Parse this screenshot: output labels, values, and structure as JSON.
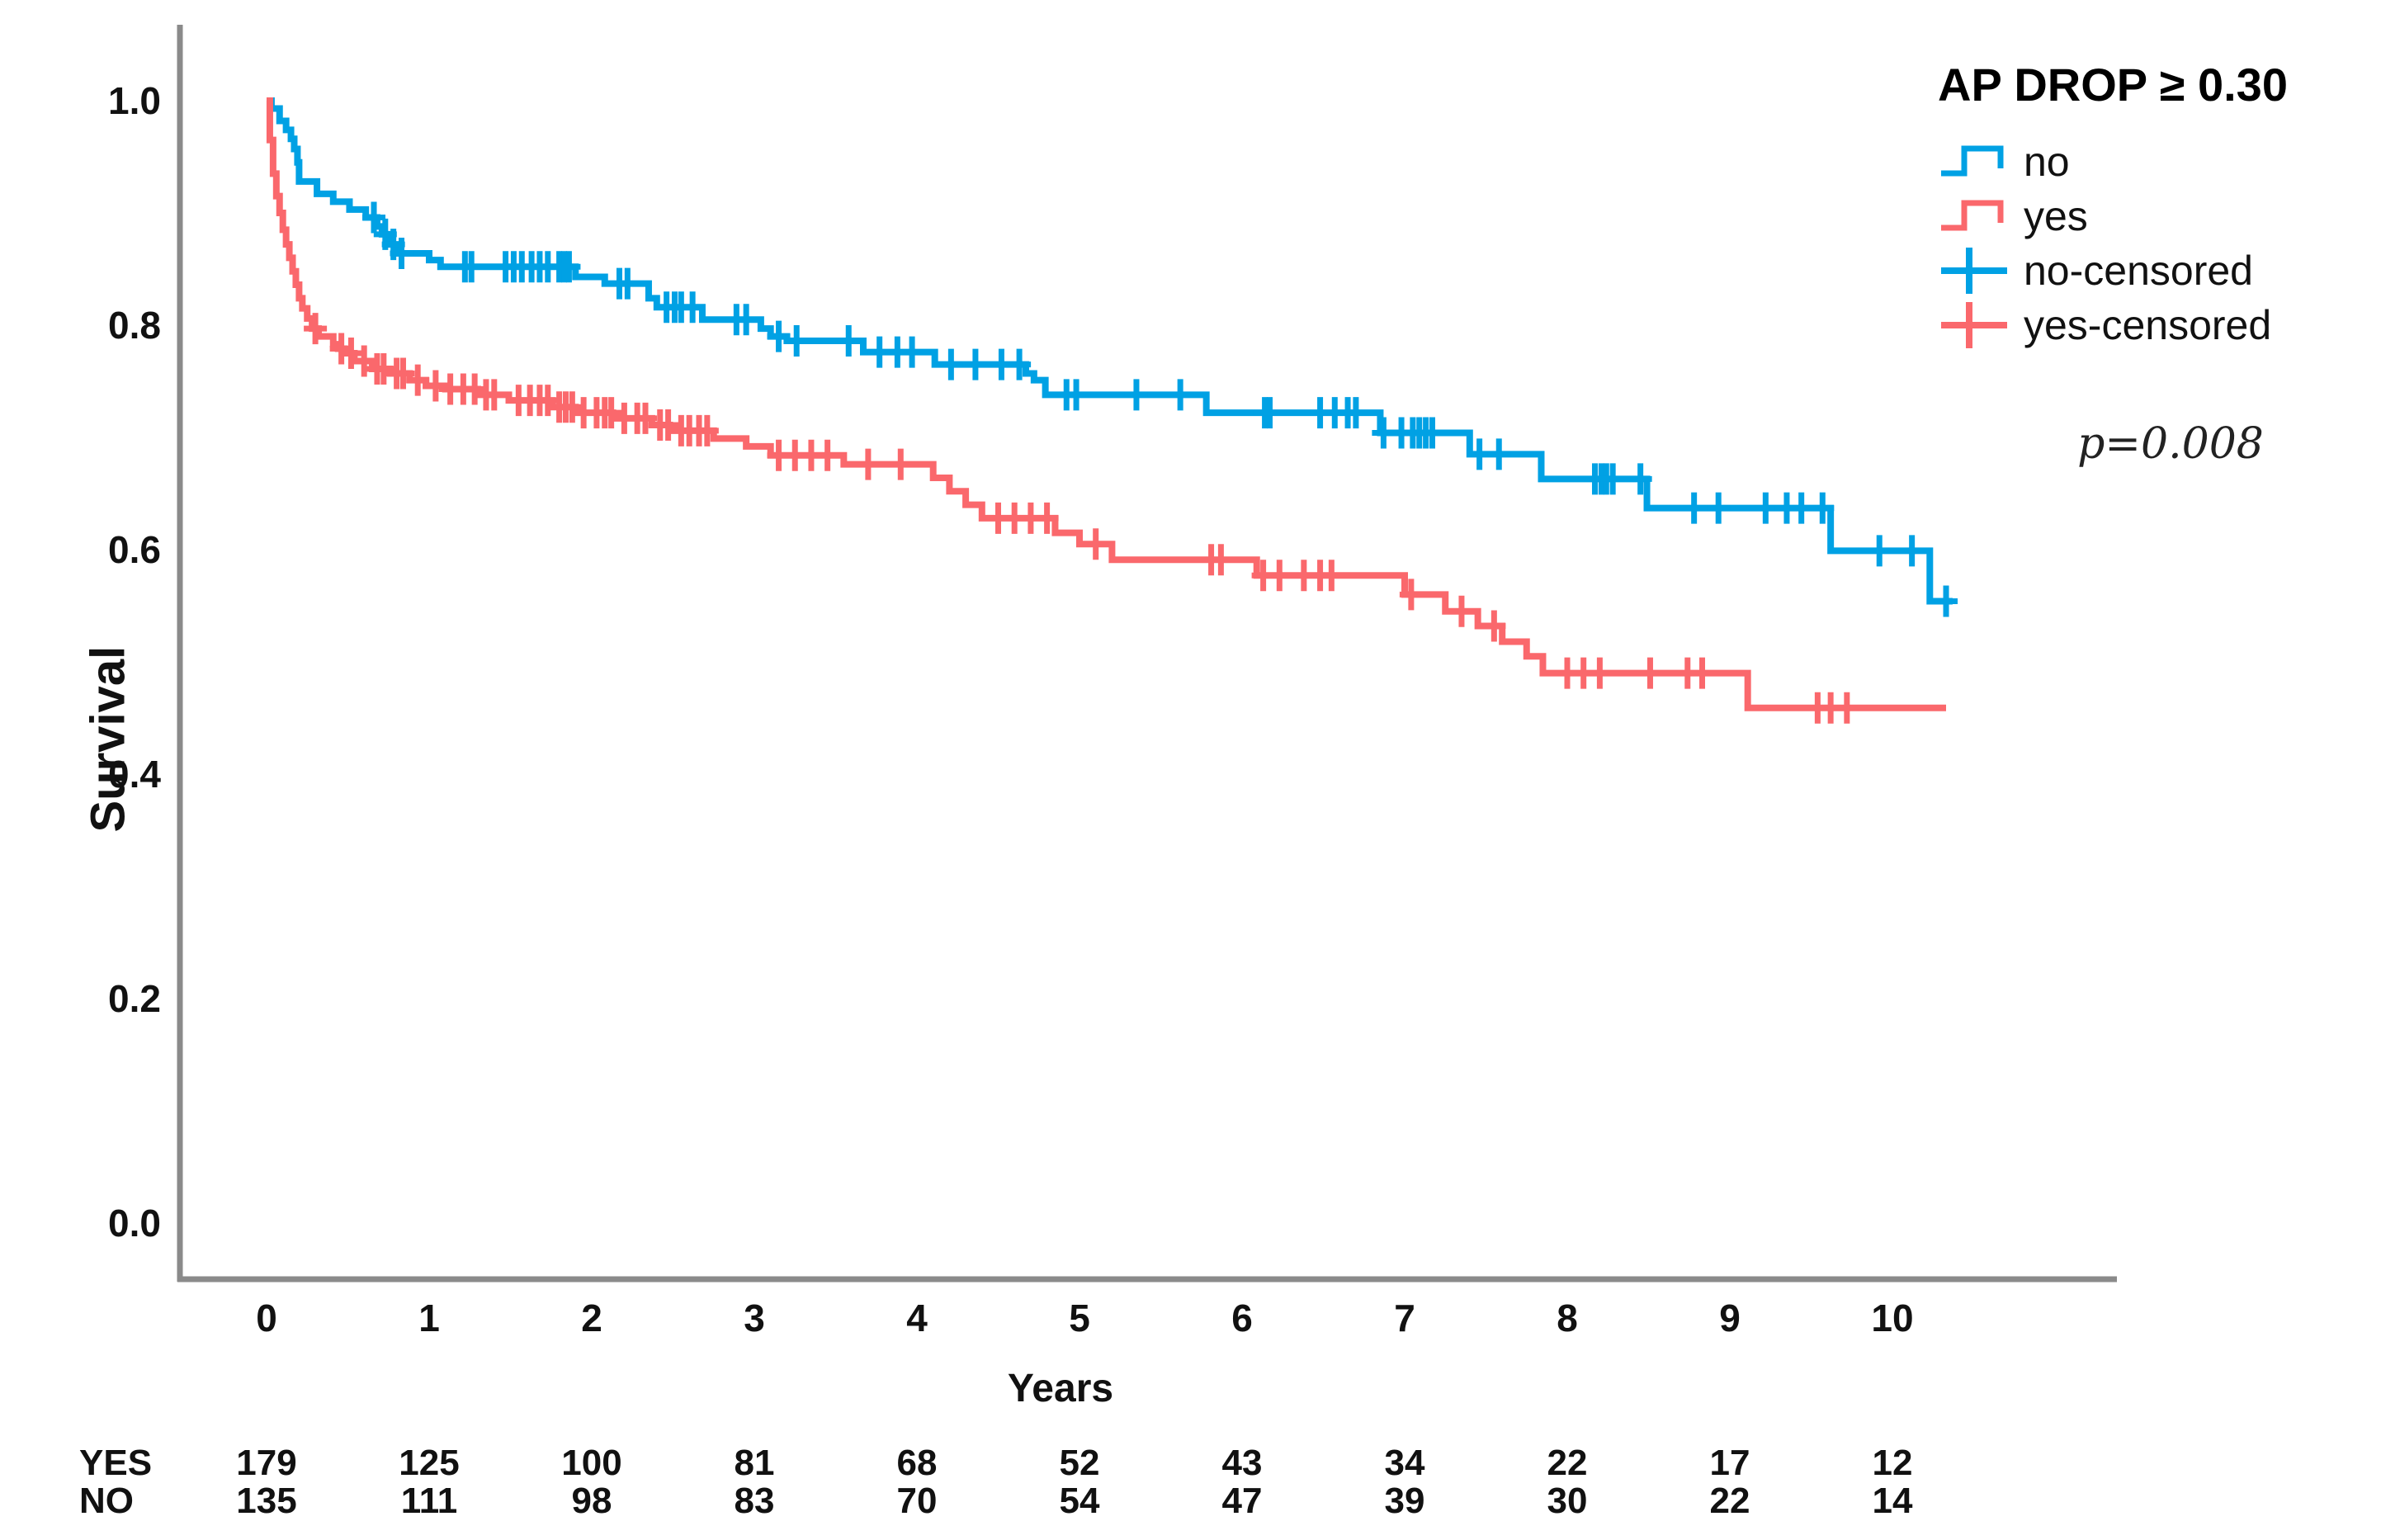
{
  "chart_data": {
    "type": "line",
    "variant": "kaplan-meier-step",
    "title": "",
    "xlabel": "Years",
    "ylabel": "Survival",
    "x_ticks": [
      "0",
      "1",
      "2",
      "3",
      "4",
      "5",
      "6",
      "7",
      "8",
      "9",
      "10"
    ],
    "y_ticks": [
      "0.0",
      "0.2",
      "0.4",
      "0.6",
      "0.8",
      "1.0"
    ],
    "xlim": [
      -0.55,
      11.35
    ],
    "ylim": [
      -0.05,
      1.07
    ],
    "grid": false,
    "legend_position": "top-right",
    "series": [
      {
        "name": "no",
        "color": "#00A1E4",
        "end_t": 10.37,
        "steps": [
          [
            0,
            1.0
          ],
          [
            0.03,
            0.993
          ],
          [
            0.08,
            0.982
          ],
          [
            0.12,
            0.974
          ],
          [
            0.15,
            0.966
          ],
          [
            0.17,
            0.957
          ],
          [
            0.19,
            0.945
          ],
          [
            0.2,
            0.928
          ],
          [
            0.31,
            0.917
          ],
          [
            0.41,
            0.91
          ],
          [
            0.51,
            0.903
          ],
          [
            0.61,
            0.896
          ],
          [
            0.68,
            0.888
          ],
          [
            0.71,
            0.881
          ],
          [
            0.76,
            0.872
          ],
          [
            0.8,
            0.864
          ],
          [
            1.0,
            0.858
          ],
          [
            1.07,
            0.852
          ],
          [
            1.9,
            0.843
          ],
          [
            2.08,
            0.837
          ],
          [
            2.35,
            0.824
          ],
          [
            2.4,
            0.816
          ],
          [
            2.68,
            0.805
          ],
          [
            3.04,
            0.797
          ],
          [
            3.1,
            0.79
          ],
          [
            3.2,
            0.786
          ],
          [
            3.67,
            0.776
          ],
          [
            4.11,
            0.765
          ],
          [
            4.67,
            0.757
          ],
          [
            4.72,
            0.751
          ],
          [
            4.79,
            0.738
          ],
          [
            5.78,
            0.722
          ],
          [
            6.85,
            0.704
          ],
          [
            7.4,
            0.685
          ],
          [
            7.84,
            0.663
          ],
          [
            8.49,
            0.637
          ],
          [
            9.62,
            0.599
          ],
          [
            10.23,
            0.554
          ]
        ],
        "censor_t": [
          0.66,
          0.73,
          0.78,
          0.83,
          1.22,
          1.26,
          1.47,
          1.52,
          1.57,
          1.63,
          1.68,
          1.73,
          1.8,
          1.83,
          1.86,
          2.17,
          2.22,
          2.46,
          2.51,
          2.55,
          2.62,
          2.89,
          2.95,
          3.15,
          3.26,
          3.58,
          3.77,
          3.88,
          3.97,
          4.21,
          4.36,
          4.52,
          4.63,
          4.92,
          4.98,
          5.35,
          5.62,
          6.14,
          6.17,
          6.48,
          6.57,
          6.65,
          6.7,
          6.87,
          6.98,
          7.05,
          7.09,
          7.13,
          7.17,
          7.46,
          7.58,
          8.17,
          8.21,
          8.24,
          8.28,
          8.45,
          8.78,
          8.93,
          9.22,
          9.35,
          9.44,
          9.57,
          9.92,
          10.12,
          10.33
        ]
      },
      {
        "name": "yes",
        "color": "#FA686C",
        "end_t": 10.33,
        "steps": [
          [
            0,
            1.0
          ],
          [
            0.02,
            0.965
          ],
          [
            0.04,
            0.935
          ],
          [
            0.06,
            0.915
          ],
          [
            0.08,
            0.9
          ],
          [
            0.1,
            0.885
          ],
          [
            0.12,
            0.872
          ],
          [
            0.14,
            0.86
          ],
          [
            0.16,
            0.848
          ],
          [
            0.18,
            0.836
          ],
          [
            0.2,
            0.824
          ],
          [
            0.22,
            0.815
          ],
          [
            0.25,
            0.806
          ],
          [
            0.28,
            0.797
          ],
          [
            0.32,
            0.79
          ],
          [
            0.41,
            0.783
          ],
          [
            0.44,
            0.779
          ],
          [
            0.48,
            0.775
          ],
          [
            0.54,
            0.768
          ],
          [
            0.65,
            0.761
          ],
          [
            0.76,
            0.757
          ],
          [
            0.88,
            0.751
          ],
          [
            0.98,
            0.746
          ],
          [
            1.1,
            0.743
          ],
          [
            1.3,
            0.738
          ],
          [
            1.49,
            0.733
          ],
          [
            1.76,
            0.727
          ],
          [
            1.9,
            0.722
          ],
          [
            2.13,
            0.717
          ],
          [
            2.37,
            0.711
          ],
          [
            2.48,
            0.706
          ],
          [
            2.75,
            0.699
          ],
          [
            2.95,
            0.692
          ],
          [
            3.1,
            0.684
          ],
          [
            3.55,
            0.676
          ],
          [
            4.1,
            0.664
          ],
          [
            4.2,
            0.652
          ],
          [
            4.3,
            0.64
          ],
          [
            4.4,
            0.628
          ],
          [
            4.85,
            0.615
          ],
          [
            5.0,
            0.605
          ],
          [
            5.2,
            0.591
          ],
          [
            6.09,
            0.577
          ],
          [
            7.0,
            0.56
          ],
          [
            7.25,
            0.545
          ],
          [
            7.45,
            0.532
          ],
          [
            7.6,
            0.518
          ],
          [
            7.75,
            0.505
          ],
          [
            7.85,
            0.49
          ],
          [
            9.11,
            0.459
          ]
        ],
        "censor_t": [
          0.3,
          0.46,
          0.52,
          0.6,
          0.68,
          0.72,
          0.8,
          0.84,
          0.93,
          1.04,
          1.13,
          1.21,
          1.28,
          1.35,
          1.4,
          1.55,
          1.62,
          1.68,
          1.73,
          1.8,
          1.84,
          1.88,
          1.95,
          2.03,
          2.08,
          2.12,
          2.2,
          2.28,
          2.33,
          2.42,
          2.47,
          2.55,
          2.6,
          2.66,
          2.71,
          3.15,
          3.25,
          3.35,
          3.45,
          3.7,
          3.9,
          4.5,
          4.6,
          4.7,
          4.8,
          5.1,
          5.81,
          5.87,
          6.13,
          6.23,
          6.38,
          6.48,
          6.55,
          7.04,
          7.35,
          7.55,
          8.0,
          8.1,
          8.2,
          8.51,
          8.74,
          8.83,
          9.54,
          9.62,
          9.72
        ]
      }
    ]
  },
  "legend": {
    "title": "AP DROP ≥ 0.30",
    "entries": [
      {
        "label": "no",
        "symbol": "step-line",
        "color": "#00A1E4"
      },
      {
        "label": "yes",
        "symbol": "step-line",
        "color": "#FA686C"
      },
      {
        "label": "no-censored",
        "symbol": "censor-plus",
        "color": "#00A1E4"
      },
      {
        "label": "yes-censored",
        "symbol": "censor-plus",
        "color": "#FA686C"
      }
    ]
  },
  "annotations": {
    "p_value": "p=0.008"
  },
  "risk_table": {
    "rows": [
      {
        "label": "YES",
        "values": [
          "179",
          "125",
          "100",
          "81",
          "68",
          "52",
          "43",
          "34",
          "22",
          "17",
          "12"
        ]
      },
      {
        "label": "NO",
        "values": [
          "135",
          "111",
          "98",
          "83",
          "70",
          "54",
          "47",
          "39",
          "30",
          "22",
          "14"
        ]
      }
    ]
  },
  "axis_color": "#8a8a8a"
}
